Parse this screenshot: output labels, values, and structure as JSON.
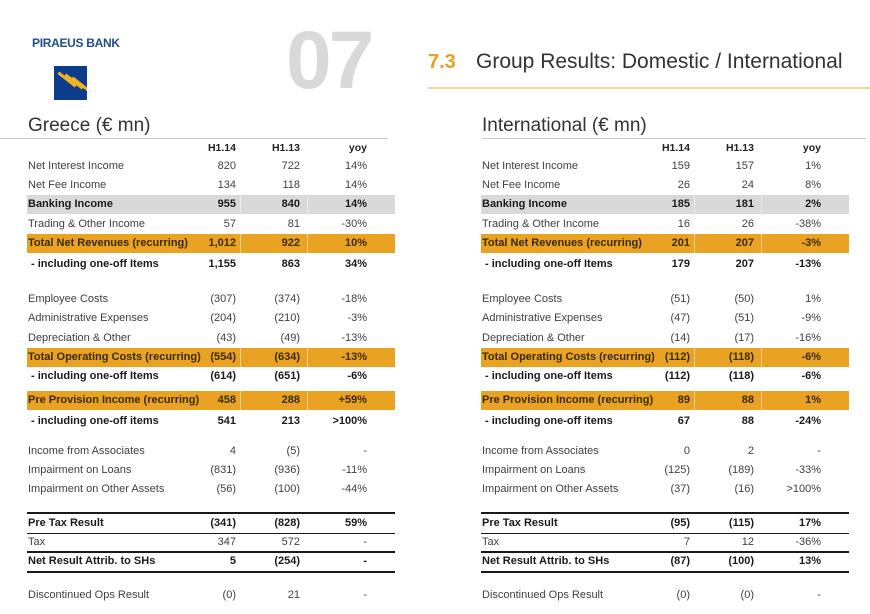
{
  "brand": "PIRAEUS BANK",
  "page_number": "07",
  "section": {
    "number": "7.3",
    "title": "Group Results: Domestic / International"
  },
  "colors": {
    "orange": "#eaa222",
    "gray_band": "#d9d9d9",
    "brand_blue": "#0d3d8a"
  },
  "tables": [
    {
      "title": "Greece (€ mn)",
      "headers": [
        "H1.14",
        "H1.13",
        "yoy"
      ],
      "rows": [
        {
          "label": "Net Interest Income",
          "v": [
            "820",
            "722",
            "14%"
          ],
          "style": ""
        },
        {
          "label": "Net Fee Income",
          "v": [
            "134",
            "118",
            "14%"
          ],
          "style": ""
        },
        {
          "label": "Banking Income",
          "v": [
            "955",
            "840",
            "14%"
          ],
          "style": "gray"
        },
        {
          "label": "Trading & Other Income",
          "v": [
            "57",
            "81",
            "-30%"
          ],
          "style": ""
        },
        {
          "label": "Total Net Revenues (recurring)",
          "v": [
            "1,012",
            "922",
            "10%"
          ],
          "style": "orange"
        },
        {
          "label": " - including one-off Items",
          "v": [
            "1,155",
            "863",
            "34%"
          ],
          "style": "sub"
        },
        {
          "label": "Employee Costs",
          "v": [
            "(307)",
            "(374)",
            "-18%"
          ],
          "style": ""
        },
        {
          "label": "Administrative Expenses",
          "v": [
            "(204)",
            "(210)",
            "-3%"
          ],
          "style": ""
        },
        {
          "label": "Depreciation & Other",
          "v": [
            "(43)",
            "(49)",
            "-13%"
          ],
          "style": ""
        },
        {
          "label": "Total Operating Costs (recurring)",
          "v": [
            "(554)",
            "(634)",
            "-13%"
          ],
          "style": "orange"
        },
        {
          "label": " - including one-off Items",
          "v": [
            "(614)",
            "(651)",
            "-6%"
          ],
          "style": "sub"
        },
        {
          "label": "Pre Provision Income (recurring)",
          "v": [
            "458",
            "288",
            "+59%"
          ],
          "style": "orange"
        },
        {
          "label": " - including one-off items",
          "v": [
            "541",
            "213",
            ">100%"
          ],
          "style": "sub"
        },
        {
          "label": "Income from Associates",
          "v": [
            "4",
            "(5)",
            "-"
          ],
          "style": ""
        },
        {
          "label": "Impairment on Loans",
          "v": [
            "(831)",
            "(936)",
            "-11%"
          ],
          "style": ""
        },
        {
          "label": "Impairment on Other Assets",
          "v": [
            "(56)",
            "(100)",
            "-44%"
          ],
          "style": ""
        },
        {
          "label": "Pre Tax Result",
          "v": [
            "(341)",
            "(828)",
            "59%"
          ],
          "style": "boldplain"
        },
        {
          "label": "Tax",
          "v": [
            "347",
            "572",
            "-"
          ],
          "style": ""
        },
        {
          "label": "Net Result Attrib. to SHs",
          "v": [
            "5",
            "(254)",
            "-"
          ],
          "style": "boldplain"
        },
        {
          "label": "Discontinued Ops Result",
          "v": [
            "(0)",
            "21",
            "-"
          ],
          "style": ""
        }
      ]
    },
    {
      "title": "International (€ mn)",
      "headers": [
        "H1.14",
        "H1.13",
        "yoy"
      ],
      "rows": [
        {
          "label": "Net Interest Income",
          "v": [
            "159",
            "157",
            "1%"
          ],
          "style": ""
        },
        {
          "label": "Net Fee Income",
          "v": [
            "26",
            "24",
            "8%"
          ],
          "style": ""
        },
        {
          "label": "Banking Income",
          "v": [
            "185",
            "181",
            "2%"
          ],
          "style": "gray"
        },
        {
          "label": "Trading & Other Income",
          "v": [
            "16",
            "26",
            "-38%"
          ],
          "style": ""
        },
        {
          "label": "Total Net Revenues (recurring)",
          "v": [
            "201",
            "207",
            "-3%"
          ],
          "style": "orange"
        },
        {
          "label": " - including one-off Items",
          "v": [
            "179",
            "207",
            "-13%"
          ],
          "style": "sub"
        },
        {
          "label": "Employee Costs",
          "v": [
            "(51)",
            "(50)",
            "1%"
          ],
          "style": ""
        },
        {
          "label": "Administrative Expenses",
          "v": [
            "(47)",
            "(51)",
            "-9%"
          ],
          "style": ""
        },
        {
          "label": "Depreciation & Other",
          "v": [
            "(14)",
            "(17)",
            "-16%"
          ],
          "style": ""
        },
        {
          "label": "Total Operating Costs (recurring)",
          "v": [
            "(112)",
            "(118)",
            "-6%"
          ],
          "style": "orange"
        },
        {
          "label": " - including one-off Items",
          "v": [
            "(112)",
            "(118)",
            "-6%"
          ],
          "style": "sub"
        },
        {
          "label": "Pre Provision Income (recurring)",
          "v": [
            "89",
            "88",
            "1%"
          ],
          "style": "orange"
        },
        {
          "label": " - including one-off items",
          "v": [
            "67",
            "88",
            "-24%"
          ],
          "style": "sub"
        },
        {
          "label": "Income from Associates",
          "v": [
            "0",
            "2",
            "-"
          ],
          "style": ""
        },
        {
          "label": "Impairment on Loans",
          "v": [
            "(125)",
            "(189)",
            "-33%"
          ],
          "style": ""
        },
        {
          "label": "Impairment on Other Assets",
          "v": [
            "(37)",
            "(16)",
            ">100%"
          ],
          "style": ""
        },
        {
          "label": "Pre Tax Result",
          "v": [
            "(95)",
            "(115)",
            "17%"
          ],
          "style": "boldplain"
        },
        {
          "label": "Tax",
          "v": [
            "7",
            "12",
            "-36%"
          ],
          "style": ""
        },
        {
          "label": "Net Result Attrib. to SHs",
          "v": [
            "(87)",
            "(100)",
            "13%"
          ],
          "style": "boldplain"
        },
        {
          "label": "Discontinued Ops Result",
          "v": [
            "(0)",
            "(0)",
            "-"
          ],
          "style": ""
        }
      ]
    }
  ]
}
